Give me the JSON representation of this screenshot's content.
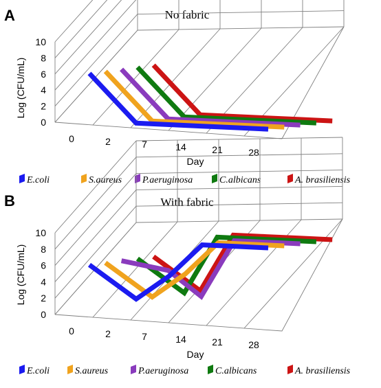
{
  "figure": {
    "xlabel": "Day",
    "ylabel": "Log (CFU/mL)"
  },
  "legend": {
    "labels": [
      "E.coli",
      "S.aureus",
      "P.aeruginosa",
      "C.albicans",
      "A. brasiliensis"
    ],
    "colors": [
      "#1b1bf0",
      "#f0a31e",
      "#8a3bbd",
      "#0f7a10",
      "#cc1414"
    ]
  },
  "chart_data": [
    {
      "panel": "A",
      "type": "line",
      "title": "No fabric",
      "xlabel": "Day",
      "ylabel": "Log (CFU/mL)",
      "categories": [
        "0",
        "2",
        "7",
        "14",
        "21",
        "28"
      ],
      "yticks": [
        0,
        2,
        4,
        6,
        8,
        10
      ],
      "ylim": [
        0,
        10
      ],
      "grid": true,
      "legend_position": "bottom",
      "series": [
        {
          "name": "E.coli",
          "values": [
            6,
            0,
            0,
            0,
            0,
            0
          ]
        },
        {
          "name": "S.aureus",
          "values": [
            6,
            0,
            0,
            0,
            0,
            0
          ]
        },
        {
          "name": "P.aeruginosa",
          "values": [
            6,
            0,
            0,
            0,
            0,
            0
          ]
        },
        {
          "name": "C.albicans",
          "values": [
            6,
            0,
            0,
            0,
            0,
            0
          ]
        },
        {
          "name": "A. brasiliensis",
          "values": [
            6,
            0,
            0,
            0,
            0,
            0
          ]
        }
      ]
    },
    {
      "panel": "B",
      "type": "line",
      "title": "With fabric",
      "xlabel": "Day",
      "ylabel": "Log (CFU/mL)",
      "categories": [
        "0",
        "2",
        "7",
        "14",
        "21",
        "28"
      ],
      "yticks": [
        0,
        2,
        4,
        6,
        8,
        10
      ],
      "ylim": [
        0,
        10
      ],
      "grid": true,
      "legend_position": "bottom",
      "series": [
        {
          "name": "E.coli",
          "values": [
            6,
            2,
            5,
            9,
            9,
            9
          ]
        },
        {
          "name": "S.aureus",
          "values": [
            6,
            2,
            5,
            9,
            9,
            9
          ]
        },
        {
          "name": "P.aeruginosa",
          "values": [
            6,
            5,
            2,
            9,
            9,
            9
          ]
        },
        {
          "name": "C.albicans",
          "values": [
            6,
            2,
            9,
            9,
            9,
            9
          ]
        },
        {
          "name": "A. brasiliensis",
          "values": [
            6,
            2,
            9,
            9,
            9,
            9
          ]
        }
      ]
    }
  ]
}
